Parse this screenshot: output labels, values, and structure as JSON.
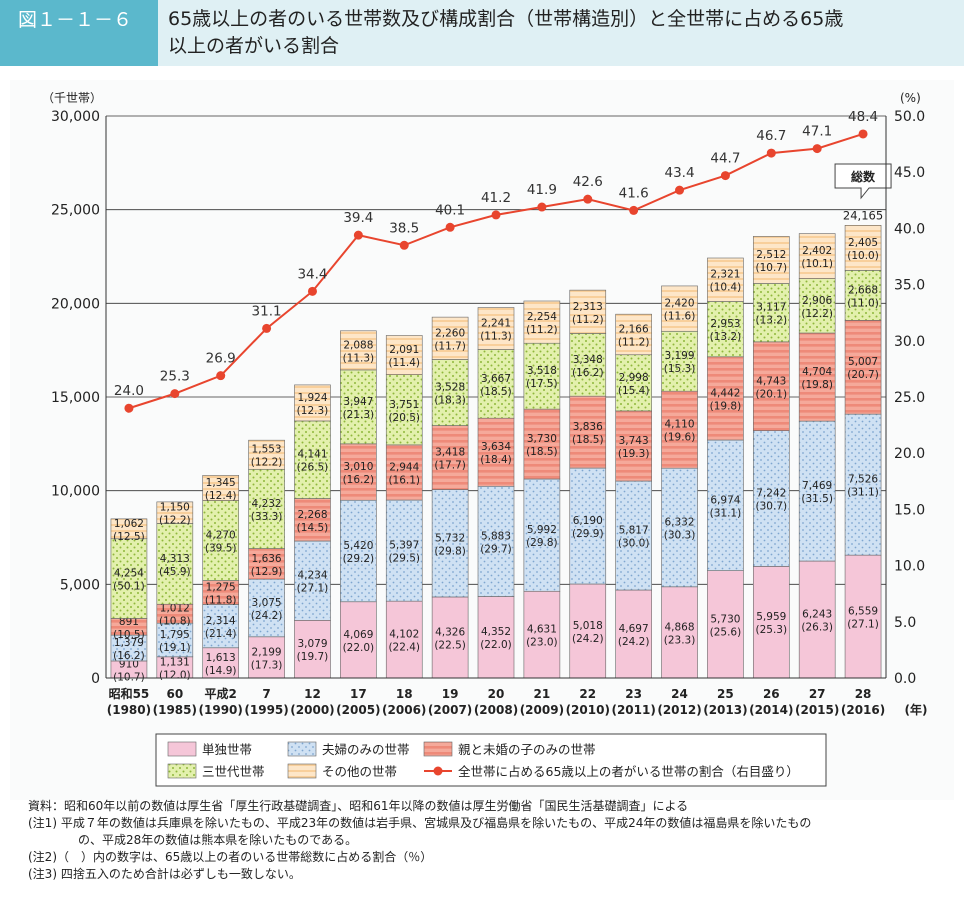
{
  "header": {
    "fig_label": "図１－１－６",
    "title_line1": "65歳以上の者のいる世帯数及び構成割合（世帯構造別）と全世帯に占める65歳",
    "title_line2": "以上の者がいる割合"
  },
  "colors": {
    "single": "#f5c6d8",
    "couple": "#cfe1f3",
    "parent_child": "#f09a8a",
    "three_gen": "#e0eea6",
    "other": "#fde3c2",
    "line": "#e8452e",
    "header_bg": "#dff0f4",
    "label_bg": "#5bb8cc"
  },
  "chart_data": {
    "type": "bar",
    "stacked": true,
    "y_left_label": "（千世帯）",
    "y_right_label": "(%)",
    "x_unit_label": "(年)",
    "ylim": [
      0,
      30000
    ],
    "y2lim": [
      0,
      50
    ],
    "y_ticks": [
      "0",
      "5,000",
      "10,000",
      "15,000",
      "20,000",
      "25,000",
      "30,000"
    ],
    "y2_ticks": [
      "0.0",
      "5.0",
      "10.0",
      "15.0",
      "20.0",
      "25.0",
      "30.0",
      "35.0",
      "40.0",
      "45.0",
      "50.0"
    ],
    "categories": [
      {
        "top": "昭和55",
        "bottom": "(1980)"
      },
      {
        "top": "60",
        "bottom": "(1985)"
      },
      {
        "top": "平成2",
        "bottom": "(1990)"
      },
      {
        "top": "7",
        "bottom": "(1995)"
      },
      {
        "top": "12",
        "bottom": "(2000)"
      },
      {
        "top": "17",
        "bottom": "(2005)"
      },
      {
        "top": "18",
        "bottom": "(2006)"
      },
      {
        "top": "19",
        "bottom": "(2007)"
      },
      {
        "top": "20",
        "bottom": "(2008)"
      },
      {
        "top": "21",
        "bottom": "(2009)"
      },
      {
        "top": "22",
        "bottom": "(2010)"
      },
      {
        "top": "23",
        "bottom": "(2011)"
      },
      {
        "top": "24",
        "bottom": "(2012)"
      },
      {
        "top": "25",
        "bottom": "(2013)"
      },
      {
        "top": "26",
        "bottom": "(2014)"
      },
      {
        "top": "27",
        "bottom": "(2015)"
      },
      {
        "top": "28",
        "bottom": "(2016)"
      }
    ],
    "series": [
      {
        "name": "単独世帯",
        "key": "single",
        "values": [
          910,
          1131,
          1613,
          2199,
          3079,
          4069,
          4102,
          4326,
          4352,
          4631,
          5018,
          4697,
          4868,
          5730,
          5959,
          6243,
          6559
        ],
        "labels": [
          "910",
          "1,131",
          "1,613",
          "2,199",
          "3,079",
          "4,069",
          "4,102",
          "4,326",
          "4,352",
          "4,631",
          "5,018",
          "4,697",
          "4,868",
          "5,730",
          "5,959",
          "6,243",
          "6,559"
        ],
        "shares": [
          "(10.7)",
          "(12.0)",
          "(14.9)",
          "(17.3)",
          "(19.7)",
          "(22.0)",
          "(22.4)",
          "(22.5)",
          "(22.0)",
          "(23.0)",
          "(24.2)",
          "(24.2)",
          "(23.3)",
          "(25.6)",
          "(25.3)",
          "(26.3)",
          "(27.1)"
        ]
      },
      {
        "name": "夫婦のみの世帯",
        "key": "couple",
        "values": [
          1379,
          1795,
          2314,
          3075,
          4234,
          5420,
          5397,
          5732,
          5883,
          5992,
          6190,
          5817,
          6332,
          6974,
          7242,
          7469,
          7526
        ],
        "labels": [
          "1,379",
          "1,795",
          "2,314",
          "3,075",
          "4,234",
          "5,420",
          "5,397",
          "5,732",
          "5,883",
          "5,992",
          "6,190",
          "5,817",
          "6,332",
          "6,974",
          "7,242",
          "7,469",
          "7,526"
        ],
        "shares": [
          "(16.2)",
          "(19.1)",
          "(21.4)",
          "(24.2)",
          "(27.1)",
          "(29.2)",
          "(29.5)",
          "(29.8)",
          "(29.7)",
          "(29.8)",
          "(29.9)",
          "(30.0)",
          "(30.3)",
          "(31.1)",
          "(30.7)",
          "(31.5)",
          "(31.1)"
        ]
      },
      {
        "name": "親と未婚の子のみの世帯",
        "key": "parent_child",
        "values": [
          891,
          1012,
          1275,
          1636,
          2268,
          3010,
          2944,
          3418,
          3634,
          3730,
          3836,
          3743,
          4110,
          4442,
          4743,
          4704,
          5007
        ],
        "labels": [
          "891",
          "1,012",
          "1,275",
          "1,636",
          "2,268",
          "3,010",
          "2,944",
          "3,418",
          "3,634",
          "3,730",
          "3,836",
          "3,743",
          "4,110",
          "4,442",
          "4,743",
          "4,704",
          "5,007"
        ],
        "shares": [
          "(10.5)",
          "(10.8)",
          "(11.8)",
          "(12.9)",
          "(14.5)",
          "(16.2)",
          "(16.1)",
          "(17.7)",
          "(18.4)",
          "(18.5)",
          "(18.5)",
          "(19.3)",
          "(19.6)",
          "(19.8)",
          "(20.1)",
          "(19.8)",
          "(20.7)"
        ]
      },
      {
        "name": "三世代世帯",
        "key": "three_gen",
        "values": [
          4254,
          4313,
          4270,
          4232,
          4141,
          3947,
          3751,
          3528,
          3667,
          3518,
          3348,
          2998,
          3199,
          2953,
          3117,
          2906,
          2668
        ],
        "labels": [
          "4,254",
          "4,313",
          "4,270",
          "4,232",
          "4,141",
          "3,947",
          "3,751",
          "3,528",
          "3,667",
          "3,518",
          "3,348",
          "2,998",
          "3,199",
          "2,953",
          "3,117",
          "2,906",
          "2,668"
        ],
        "shares": [
          "(50.1)",
          "(45.9)",
          "(39.5)",
          "(33.3)",
          "(26.5)",
          "(21.3)",
          "(20.5)",
          "(18.3)",
          "(18.5)",
          "(17.5)",
          "(16.2)",
          "(15.4)",
          "(15.3)",
          "(13.2)",
          "(13.2)",
          "(12.2)",
          "(11.0)"
        ]
      },
      {
        "name": "その他の世帯",
        "key": "other",
        "values": [
          1062,
          1150,
          1345,
          1553,
          1924,
          2088,
          2091,
          2260,
          2241,
          2254,
          2313,
          2166,
          2420,
          2321,
          2512,
          2402,
          2405
        ],
        "labels": [
          "1,062",
          "1,150",
          "1,345",
          "1,553",
          "1,924",
          "2,088",
          "2,091",
          "2,260",
          "2,241",
          "2,254",
          "2,313",
          "2,166",
          "2,420",
          "2,321",
          "2,512",
          "2,402",
          "2,405"
        ],
        "shares": [
          "(12.5)",
          "(12.2)",
          "(12.4)",
          "(12.2)",
          "(12.3)",
          "(11.3)",
          "(11.4)",
          "(11.7)",
          "(11.3)",
          "(11.2)",
          "(11.2)",
          "(11.2)",
          "(11.6)",
          "(10.4)",
          "(10.7)",
          "(10.1)",
          "(10.0)"
        ]
      }
    ],
    "line_series": {
      "name": "全世帯に占める65歳以上の者がいる世帯の割合（右目盛り）",
      "axis": "right",
      "values": [
        24.0,
        25.3,
        26.9,
        31.1,
        34.4,
        39.4,
        38.5,
        40.1,
        41.2,
        41.9,
        42.6,
        41.6,
        43.4,
        44.7,
        46.7,
        47.1,
        48.4
      ],
      "labels": [
        "24.0",
        "25.3",
        "26.9",
        "31.1",
        "34.4",
        "39.4",
        "38.5",
        "40.1",
        "41.2",
        "41.9",
        "42.6",
        "41.6",
        "43.4",
        "44.7",
        "46.7",
        "47.1",
        "48.4"
      ]
    },
    "total_callout": {
      "label": "総数",
      "value": 24165,
      "value_label": "24,165"
    },
    "grid": true,
    "legend_position": "bottom"
  },
  "notes": [
    "資料：昭和60年以前の数値は厚生省「厚生行政基礎調査」、昭和61年以降の数値は厚生労働省「国民生活基礎調査」による",
    "(注1) 平成７年の数値は兵庫県を除いたもの、平成23年の数値は岩手県、宮城県及び福島県を除いたもの、平成24年の数値は福島県を除いたもの",
    "の、平成28年の数値は熊本県を除いたものである。",
    "(注2)（　）内の数字は、65歳以上の者のいる世帯総数に占める割合（％）",
    "(注3) 四捨五入のため合計は必ずしも一致しない。"
  ]
}
